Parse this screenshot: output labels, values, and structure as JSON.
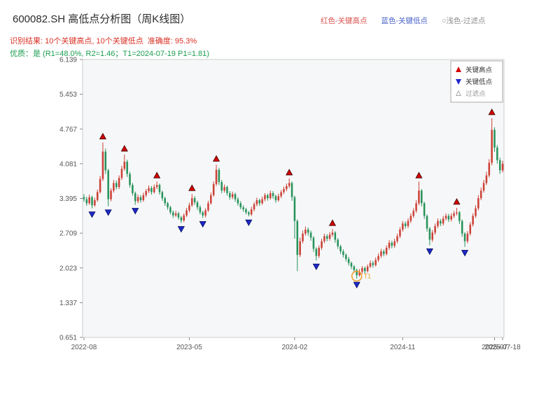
{
  "header": {
    "title": "600082.SH 高低点分析图（周K线图）",
    "title_color": "#2b2b2b",
    "legend_top": [
      {
        "label": "红色-关键高点",
        "color": "#d9534f"
      },
      {
        "label": "蓝色-关键低点",
        "color": "#4a63c8"
      },
      {
        "label": "○浅色-过滤点",
        "color": "#909090"
      }
    ],
    "result_line": "识别结果: 10个关键高点, 10个关键低点  准确度: 95.3%",
    "result_color": "#d93025",
    "quality_line": "优质：是 (R1=48.0%, R2=1.46；T1=2024-07-19 P1=1.81)",
    "quality_color": "#1a9e50"
  },
  "chart_data": {
    "type": "candlestick",
    "title": "600082.SH 高低点分析图（周K线图）",
    "ylabel": "",
    "xlabel": "",
    "ylim": [
      0.651,
      6.139
    ],
    "y_ticks": [
      0.651,
      1.337,
      2.023,
      2.709,
      3.395,
      4.081,
      4.767,
      5.453,
      6.139
    ],
    "x_ticks": [
      {
        "index": 0,
        "label": "2022-08"
      },
      {
        "index": 39,
        "label": "2023-05"
      },
      {
        "index": 78,
        "label": "2024-02"
      },
      {
        "index": 118,
        "label": "2024-11"
      },
      {
        "index": 152,
        "label": "2025-07"
      },
      {
        "index": 155,
        "label": "2025-07-18"
      }
    ],
    "candles": [
      [
        3.42,
        3.48,
        3.33,
        3.38
      ],
      [
        3.38,
        3.43,
        3.25,
        3.3
      ],
      [
        3.3,
        3.47,
        3.27,
        3.42
      ],
      [
        3.42,
        3.45,
        3.2,
        3.26
      ],
      [
        3.26,
        3.41,
        3.23,
        3.36
      ],
      [
        3.36,
        3.57,
        3.33,
        3.52
      ],
      [
        3.52,
        3.84,
        3.49,
        3.78
      ],
      [
        3.78,
        4.5,
        3.74,
        4.32
      ],
      [
        4.32,
        4.38,
        3.88,
        3.95
      ],
      [
        3.95,
        3.98,
        3.24,
        3.38
      ],
      [
        3.38,
        3.6,
        3.34,
        3.55
      ],
      [
        3.55,
        3.76,
        3.51,
        3.7
      ],
      [
        3.7,
        3.75,
        3.57,
        3.62
      ],
      [
        3.62,
        3.85,
        3.58,
        3.8
      ],
      [
        3.8,
        4.04,
        3.76,
        3.98
      ],
      [
        3.98,
        4.26,
        3.94,
        4.12
      ],
      [
        4.12,
        4.16,
        3.82,
        3.88
      ],
      [
        3.88,
        3.92,
        3.61,
        3.66
      ],
      [
        3.66,
        3.7,
        3.45,
        3.5
      ],
      [
        3.5,
        3.53,
        3.27,
        3.34
      ],
      [
        3.34,
        3.47,
        3.3,
        3.42
      ],
      [
        3.42,
        3.46,
        3.31,
        3.36
      ],
      [
        3.36,
        3.51,
        3.33,
        3.46
      ],
      [
        3.46,
        3.58,
        3.42,
        3.54
      ],
      [
        3.54,
        3.65,
        3.5,
        3.6
      ],
      [
        3.6,
        3.64,
        3.47,
        3.52
      ],
      [
        3.52,
        3.67,
        3.49,
        3.62
      ],
      [
        3.62,
        3.73,
        3.58,
        3.66
      ],
      [
        3.66,
        3.69,
        3.47,
        3.52
      ],
      [
        3.52,
        3.55,
        3.35,
        3.4
      ],
      [
        3.4,
        3.43,
        3.25,
        3.3
      ],
      [
        3.3,
        3.33,
        3.17,
        3.22
      ],
      [
        3.22,
        3.25,
        3.08,
        3.12
      ],
      [
        3.12,
        3.16,
        3.01,
        3.06
      ],
      [
        3.06,
        3.15,
        3.03,
        3.1
      ],
      [
        3.1,
        3.13,
        2.98,
        3.02
      ],
      [
        3.02,
        3.05,
        2.91,
        2.96
      ],
      [
        2.96,
        3.1,
        2.93,
        3.06
      ],
      [
        3.06,
        3.21,
        3.03,
        3.16
      ],
      [
        3.16,
        3.31,
        3.12,
        3.26
      ],
      [
        3.26,
        3.48,
        3.23,
        3.4
      ],
      [
        3.4,
        3.44,
        3.27,
        3.32
      ],
      [
        3.32,
        3.35,
        3.17,
        3.22
      ],
      [
        3.22,
        3.26,
        3.08,
        3.12
      ],
      [
        3.12,
        3.15,
        3.01,
        3.06
      ],
      [
        3.06,
        3.2,
        3.02,
        3.16
      ],
      [
        3.16,
        3.35,
        3.13,
        3.3
      ],
      [
        3.3,
        3.51,
        3.27,
        3.46
      ],
      [
        3.46,
        3.73,
        3.43,
        3.68
      ],
      [
        3.68,
        4.06,
        3.64,
        3.96
      ],
      [
        3.96,
        4.0,
        3.66,
        3.72
      ],
      [
        3.72,
        3.76,
        3.5,
        3.55
      ],
      [
        3.55,
        3.67,
        3.51,
        3.62
      ],
      [
        3.62,
        3.65,
        3.45,
        3.5
      ],
      [
        3.5,
        3.54,
        3.37,
        3.42
      ],
      [
        3.42,
        3.53,
        3.38,
        3.48
      ],
      [
        3.48,
        3.51,
        3.33,
        3.38
      ],
      [
        3.38,
        3.42,
        3.25,
        3.3
      ],
      [
        3.3,
        3.34,
        3.18,
        3.22
      ],
      [
        3.22,
        3.26,
        3.13,
        3.18
      ],
      [
        3.18,
        3.21,
        3.08,
        3.12
      ],
      [
        3.12,
        3.15,
        3.04,
        3.08
      ],
      [
        3.08,
        3.23,
        3.05,
        3.18
      ],
      [
        3.18,
        3.32,
        3.14,
        3.28
      ],
      [
        3.28,
        3.41,
        3.24,
        3.36
      ],
      [
        3.36,
        3.39,
        3.25,
        3.3
      ],
      [
        3.3,
        3.43,
        3.27,
        3.38
      ],
      [
        3.38,
        3.5,
        3.34,
        3.46
      ],
      [
        3.46,
        3.49,
        3.35,
        3.4
      ],
      [
        3.4,
        3.55,
        3.37,
        3.5
      ],
      [
        3.5,
        3.54,
        3.39,
        3.44
      ],
      [
        3.44,
        3.47,
        3.31,
        3.36
      ],
      [
        3.36,
        3.49,
        3.33,
        3.44
      ],
      [
        3.44,
        3.56,
        3.4,
        3.52
      ],
      [
        3.52,
        3.63,
        3.48,
        3.58
      ],
      [
        3.58,
        3.69,
        3.54,
        3.64
      ],
      [
        3.64,
        3.79,
        3.6,
        3.7
      ],
      [
        3.7,
        3.73,
        3.35,
        3.42
      ],
      [
        3.42,
        3.45,
        2.6,
        2.95
      ],
      [
        2.95,
        2.98,
        1.96,
        2.28
      ],
      [
        2.28,
        2.62,
        2.24,
        2.55
      ],
      [
        2.55,
        2.76,
        2.51,
        2.7
      ],
      [
        2.7,
        2.84,
        2.66,
        2.78
      ],
      [
        2.78,
        2.82,
        2.66,
        2.72
      ],
      [
        2.72,
        2.76,
        2.56,
        2.62
      ],
      [
        2.62,
        2.65,
        2.34,
        2.4
      ],
      [
        2.4,
        2.43,
        2.17,
        2.26
      ],
      [
        2.26,
        2.47,
        2.22,
        2.42
      ],
      [
        2.42,
        2.6,
        2.38,
        2.55
      ],
      [
        2.55,
        2.7,
        2.51,
        2.65
      ],
      [
        2.65,
        2.69,
        2.55,
        2.6
      ],
      [
        2.6,
        2.73,
        2.56,
        2.68
      ],
      [
        2.68,
        2.79,
        2.64,
        2.72
      ],
      [
        2.72,
        2.75,
        2.52,
        2.58
      ],
      [
        2.58,
        2.61,
        2.4,
        2.45
      ],
      [
        2.45,
        2.48,
        2.3,
        2.35
      ],
      [
        2.35,
        2.39,
        2.23,
        2.28
      ],
      [
        2.28,
        2.31,
        2.15,
        2.2
      ],
      [
        2.2,
        2.24,
        2.07,
        2.12
      ],
      [
        2.12,
        2.15,
        2.0,
        2.05
      ],
      [
        2.05,
        2.08,
        1.93,
        1.98
      ],
      [
        1.98,
        2.01,
        1.81,
        1.88
      ],
      [
        1.88,
        2.0,
        1.85,
        1.95
      ],
      [
        1.95,
        2.06,
        1.91,
        2.02
      ],
      [
        2.02,
        2.05,
        1.91,
        1.96
      ],
      [
        1.96,
        2.09,
        1.93,
        2.05
      ],
      [
        2.05,
        2.17,
        2.02,
        2.12
      ],
      [
        2.12,
        2.16,
        2.03,
        2.08
      ],
      [
        2.08,
        2.23,
        2.05,
        2.18
      ],
      [
        2.18,
        2.31,
        2.14,
        2.26
      ],
      [
        2.26,
        2.4,
        2.22,
        2.35
      ],
      [
        2.35,
        2.39,
        2.25,
        2.3
      ],
      [
        2.3,
        2.47,
        2.27,
        2.42
      ],
      [
        2.42,
        2.57,
        2.38,
        2.52
      ],
      [
        2.52,
        2.56,
        2.41,
        2.46
      ],
      [
        2.46,
        2.6,
        2.42,
        2.55
      ],
      [
        2.55,
        2.7,
        2.51,
        2.65
      ],
      [
        2.65,
        2.83,
        2.61,
        2.78
      ],
      [
        2.78,
        2.95,
        2.74,
        2.9
      ],
      [
        2.9,
        2.94,
        2.8,
        2.85
      ],
      [
        2.85,
        3.0,
        2.81,
        2.95
      ],
      [
        2.95,
        3.1,
        2.91,
        3.05
      ],
      [
        3.05,
        3.2,
        3.01,
        3.15
      ],
      [
        3.15,
        3.36,
        3.11,
        3.3
      ],
      [
        3.3,
        3.73,
        3.26,
        3.55
      ],
      [
        3.55,
        3.58,
        3.24,
        3.3
      ],
      [
        3.3,
        3.33,
        2.99,
        3.05
      ],
      [
        3.05,
        3.08,
        2.74,
        2.8
      ],
      [
        2.8,
        2.83,
        2.47,
        2.58
      ],
      [
        2.58,
        2.77,
        2.54,
        2.72
      ],
      [
        2.72,
        2.9,
        2.68,
        2.85
      ],
      [
        2.85,
        3.0,
        2.81,
        2.95
      ],
      [
        2.95,
        2.99,
        2.85,
        2.9
      ],
      [
        2.9,
        3.05,
        2.86,
        3.0
      ],
      [
        3.0,
        3.1,
        2.96,
        3.05
      ],
      [
        3.05,
        3.09,
        2.93,
        2.98
      ],
      [
        2.98,
        3.1,
        2.94,
        3.05
      ],
      [
        3.05,
        3.15,
        3.01,
        3.1
      ],
      [
        3.1,
        3.21,
        3.06,
        3.12
      ],
      [
        3.12,
        3.15,
        2.89,
        2.95
      ],
      [
        2.95,
        2.98,
        2.64,
        2.7
      ],
      [
        2.7,
        2.73,
        2.44,
        2.55
      ],
      [
        2.55,
        2.75,
        2.51,
        2.7
      ],
      [
        2.7,
        2.93,
        2.66,
        2.88
      ],
      [
        2.88,
        3.1,
        2.84,
        3.05
      ],
      [
        3.05,
        3.26,
        3.01,
        3.2
      ],
      [
        3.2,
        3.46,
        3.16,
        3.4
      ],
      [
        3.4,
        3.61,
        3.36,
        3.55
      ],
      [
        3.55,
        3.76,
        3.51,
        3.7
      ],
      [
        3.7,
        3.92,
        3.66,
        3.85
      ],
      [
        3.85,
        4.17,
        3.81,
        4.1
      ],
      [
        4.1,
        4.98,
        4.05,
        4.75
      ],
      [
        4.75,
        4.8,
        4.32,
        4.4
      ],
      [
        4.4,
        4.45,
        4.08,
        4.15
      ],
      [
        4.15,
        4.2,
        3.88,
        3.95
      ],
      [
        3.95,
        4.14,
        3.91,
        4.08
      ]
    ],
    "key_highs": [
      {
        "index": 7,
        "price": 4.5
      },
      {
        "index": 15,
        "price": 4.26
      },
      {
        "index": 27,
        "price": 3.73
      },
      {
        "index": 40,
        "price": 3.48
      },
      {
        "index": 49,
        "price": 4.06
      },
      {
        "index": 76,
        "price": 3.79
      },
      {
        "index": 92,
        "price": 2.79
      },
      {
        "index": 124,
        "price": 3.73
      },
      {
        "index": 138,
        "price": 3.21
      },
      {
        "index": 151,
        "price": 4.98
      }
    ],
    "key_lows": [
      {
        "index": 3,
        "price": 3.2
      },
      {
        "index": 9,
        "price": 3.24
      },
      {
        "index": 19,
        "price": 3.27
      },
      {
        "index": 36,
        "price": 2.91
      },
      {
        "index": 44,
        "price": 3.01
      },
      {
        "index": 61,
        "price": 3.04
      },
      {
        "index": 86,
        "price": 2.17
      },
      {
        "index": 101,
        "price": 1.81
      },
      {
        "index": 128,
        "price": 2.47
      },
      {
        "index": 141,
        "price": 2.44
      }
    ],
    "t1_marker": {
      "index": 101,
      "price": 1.86,
      "label": "T1"
    },
    "legend_box": [
      {
        "label": "关键高点",
        "marker": "up",
        "color": "#d40000",
        "text_color": "#333333"
      },
      {
        "label": "关键低点",
        "marker": "down",
        "color": "#2026c8",
        "text_color": "#333333"
      },
      {
        "label": "过滤点",
        "marker": "up-hollow",
        "color": "#aaaaaa",
        "text_color": "#999999"
      }
    ],
    "legend_position": "upper right",
    "grid": false,
    "colors": {
      "up": "#cc4137",
      "down": "#27935a",
      "high_marker": "#d40000",
      "high_marker_edge": "#3a0000",
      "low_marker": "#2026c8",
      "low_marker_edge": "#001060",
      "t1": "#f0a030",
      "plot_bg": "#f6f7f8",
      "plot_border": "#cccccc",
      "axis_text": "#555555"
    }
  }
}
